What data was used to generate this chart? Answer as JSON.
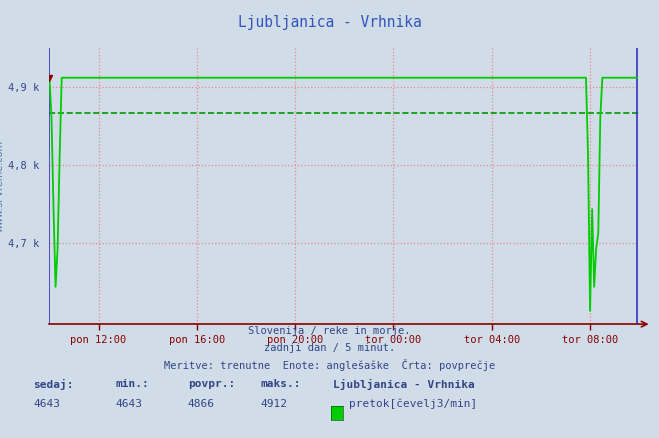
{
  "title": "Ljubljanica - Vrhnika",
  "title_color": "#3355bb",
  "bg_color": "#d0dce8",
  "plot_bg_color": "#d0dce8",
  "xlabel_ticks": [
    "pon 12:00",
    "pon 16:00",
    "pon 20:00",
    "tor 00:00",
    "tor 04:00",
    "tor 08:00"
  ],
  "ytick_labels": [
    "4,7 k",
    "4,8 k",
    "4,9 k"
  ],
  "ytick_values": [
    4700,
    4800,
    4900
  ],
  "ylim_min": 4595,
  "ylim_max": 4950,
  "n_points": 288,
  "line_color": "#00cc00",
  "line_color_blue": "#3333bb",
  "avg_line_color": "#009900",
  "avg_value": 4866,
  "max_value": 4912,
  "min_value": 4643,
  "sedaj": 4643,
  "min_val": 4643,
  "povpr_val": 4866,
  "maks_val": 4912,
  "station_name": "Ljubljanica - Vrhnika",
  "unit": "pretok[čevelj3/min]",
  "subtitle1": "Slovenija / reke in morje.",
  "subtitle2": "zadnji dan / 5 minut.",
  "subtitle3": "Meritve: trenutne  Enote: anglešaške  Črta: povprečje",
  "grid_red_color": "#ee8888",
  "arrow_color": "#880000",
  "text_color": "#334488",
  "tick_x_positions": [
    24,
    72,
    120,
    168,
    216,
    264
  ]
}
